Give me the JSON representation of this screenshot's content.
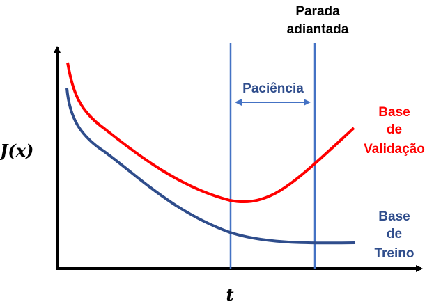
{
  "labels": {
    "y_axis": "J(x)",
    "x_axis": "t",
    "early_stop_line1": "Parada",
    "early_stop_line2": "adiantada",
    "patience": "Paciência",
    "validation_line1": "Base",
    "validation_line2": "de",
    "validation_line3": "Validação",
    "train_line1": "Base",
    "train_line2": "de",
    "train_line3": "Treino"
  },
  "colors": {
    "axis": "#000000",
    "validation": "#ff0000",
    "train": "#2f4d8c",
    "vertical_lines": "#4472c4",
    "patience_arrow": "#4472c4",
    "patience_text": "#2f4d8c",
    "early_stop_text": "#000000"
  }
}
